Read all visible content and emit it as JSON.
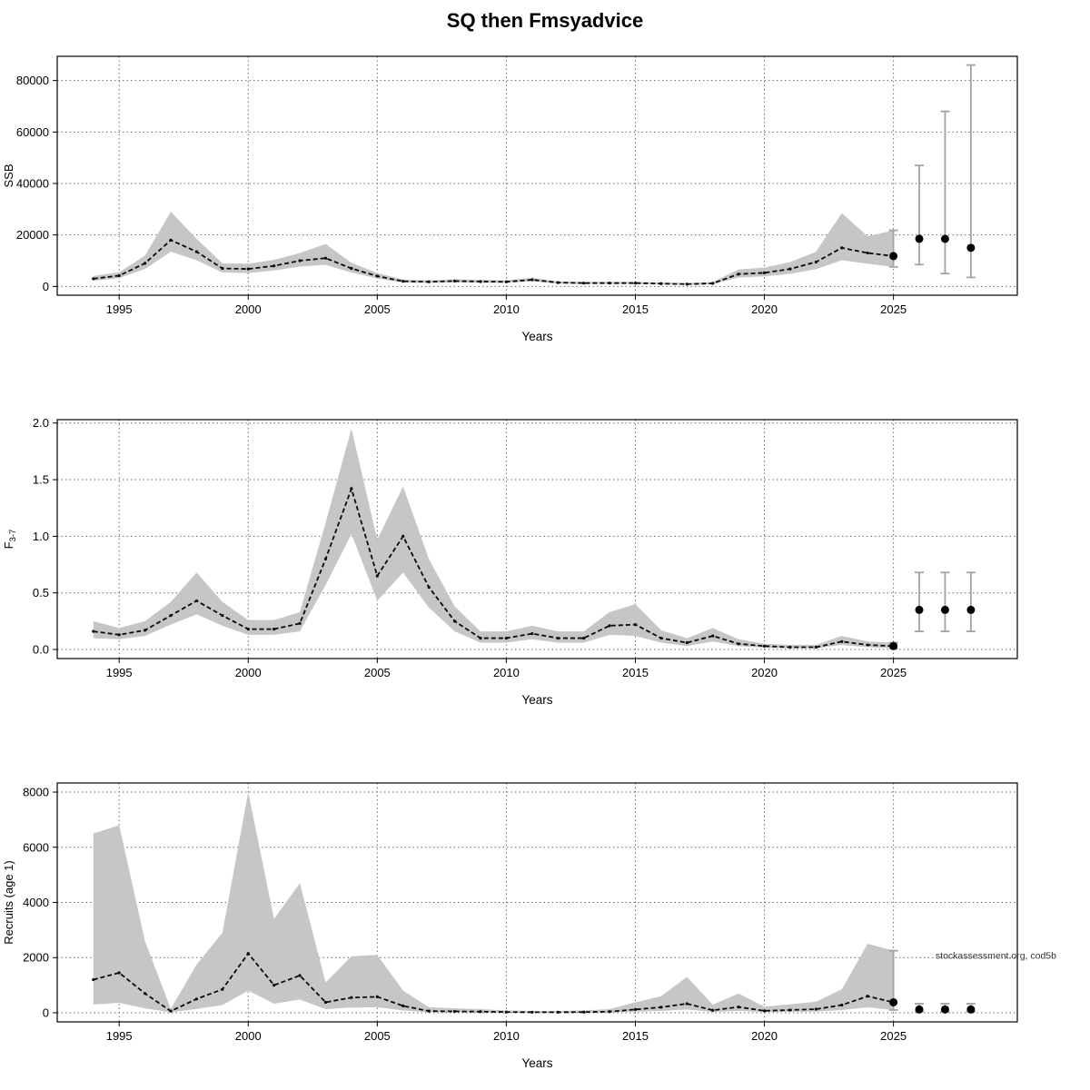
{
  "title": "SQ then Fmsyadvice",
  "annotation": "stockassessment.org, cod5b",
  "colors": {
    "band": "#c6c6c6",
    "line": "#0a0a0a",
    "grid": "#6b6b6b",
    "forecast_bar": "#a3a3a3",
    "dot": "#000000",
    "axis": "#000000",
    "annotation_text": "#333333"
  },
  "chart_data": [
    {
      "type": "line",
      "name": "ssb",
      "title": "",
      "xlabel": "Years",
      "ylabel": "SSB",
      "ylabel_sub": "",
      "legend": "none",
      "grid": true,
      "xlim": [
        1992.6,
        2029.8
      ],
      "ylim": [
        -3400,
        89400
      ],
      "x_ticks": [
        1995,
        2000,
        2005,
        2010,
        2015,
        2020,
        2025
      ],
      "x_tick_labels": [
        "1995",
        "2000",
        "2005",
        "2010",
        "2015",
        "2020",
        "2025"
      ],
      "y_ticks": [
        0,
        20000,
        40000,
        60000,
        80000
      ],
      "y_tick_labels": [
        "0",
        "20000",
        "40000",
        "60000",
        "80000"
      ],
      "years": [
        1994,
        1995,
        1996,
        1997,
        1998,
        1999,
        2000,
        2001,
        2002,
        2003,
        2004,
        2005,
        2006,
        2007,
        2008,
        2009,
        2010,
        2011,
        2012,
        2013,
        2014,
        2015,
        2016,
        2017,
        2018,
        2019,
        2020,
        2021,
        2022,
        2023,
        2024,
        2025
      ],
      "est": [
        3000,
        4200,
        9000,
        18000,
        13500,
        7000,
        6800,
        8000,
        10000,
        11000,
        7000,
        4000,
        2000,
        1800,
        2100,
        1900,
        1800,
        2600,
        1500,
        1300,
        1300,
        1300,
        1100,
        900,
        1200,
        4800,
        5300,
        6800,
        9500,
        15000,
        13000,
        11800
      ],
      "lo": [
        2200,
        3200,
        6800,
        13500,
        10200,
        5400,
        5200,
        6200,
        7700,
        8400,
        5400,
        3100,
        1500,
        1400,
        1600,
        1400,
        1400,
        2000,
        1100,
        1000,
        1000,
        1000,
        800,
        650,
        850,
        3500,
        3900,
        4900,
        6700,
        10200,
        8800,
        7600
      ],
      "hi": [
        4100,
        5500,
        12000,
        29000,
        18500,
        9000,
        8800,
        10300,
        13000,
        16500,
        9200,
        5200,
        2700,
        2400,
        2800,
        2600,
        2400,
        3400,
        2000,
        1800,
        1800,
        1800,
        1500,
        1300,
        1700,
        6600,
        7300,
        9500,
        13500,
        28500,
        19500,
        21800
      ],
      "forecast": {
        "years": [
          2026,
          2027,
          2028
        ],
        "est": [
          18500,
          18500,
          15000
        ],
        "lo": [
          8500,
          5000,
          3500
        ],
        "hi": [
          47000,
          68000,
          86000
        ]
      }
    },
    {
      "type": "line",
      "name": "fbar",
      "title": "",
      "xlabel": "Years",
      "ylabel": "F",
      "ylabel_sub": "3-7",
      "legend": "none",
      "grid": true,
      "xlim": [
        1992.6,
        2029.8
      ],
      "ylim": [
        -0.08,
        2.03
      ],
      "x_ticks": [
        1995,
        2000,
        2005,
        2010,
        2015,
        2020,
        2025
      ],
      "x_tick_labels": [
        "1995",
        "2000",
        "2005",
        "2010",
        "2015",
        "2020",
        "2025"
      ],
      "y_ticks": [
        0,
        0.5,
        1.0,
        1.5,
        2.0
      ],
      "y_tick_labels": [
        "0.0",
        "0.5",
        "1.0",
        "1.5",
        "2.0"
      ],
      "years": [
        1994,
        1995,
        1996,
        1997,
        1998,
        1999,
        2000,
        2001,
        2002,
        2003,
        2004,
        2005,
        2006,
        2007,
        2008,
        2009,
        2010,
        2011,
        2012,
        2013,
        2014,
        2015,
        2016,
        2017,
        2018,
        2019,
        2020,
        2021,
        2022,
        2023,
        2024,
        2025
      ],
      "est": [
        0.16,
        0.13,
        0.17,
        0.3,
        0.43,
        0.3,
        0.18,
        0.18,
        0.23,
        0.8,
        1.42,
        0.65,
        1.0,
        0.55,
        0.25,
        0.1,
        0.1,
        0.14,
        0.1,
        0.1,
        0.21,
        0.22,
        0.1,
        0.06,
        0.12,
        0.05,
        0.03,
        0.02,
        0.02,
        0.07,
        0.04,
        0.03
      ],
      "lo": [
        0.1,
        0.09,
        0.12,
        0.22,
        0.31,
        0.21,
        0.13,
        0.13,
        0.16,
        0.57,
        1.02,
        0.43,
        0.68,
        0.37,
        0.16,
        0.06,
        0.06,
        0.09,
        0.06,
        0.06,
        0.13,
        0.12,
        0.06,
        0.03,
        0.07,
        0.03,
        0.015,
        0.01,
        0.01,
        0.04,
        0.02,
        0.01
      ],
      "hi": [
        0.25,
        0.19,
        0.25,
        0.42,
        0.68,
        0.42,
        0.26,
        0.26,
        0.33,
        1.12,
        1.95,
        0.97,
        1.44,
        0.8,
        0.38,
        0.16,
        0.16,
        0.21,
        0.16,
        0.16,
        0.33,
        0.4,
        0.17,
        0.1,
        0.19,
        0.09,
        0.05,
        0.04,
        0.04,
        0.12,
        0.07,
        0.06
      ],
      "forecast": {
        "years": [
          2026,
          2027,
          2028
        ],
        "est": [
          0.35,
          0.35,
          0.35
        ],
        "lo": [
          0.16,
          0.16,
          0.16
        ],
        "hi": [
          0.68,
          0.68,
          0.68
        ]
      }
    },
    {
      "type": "line",
      "name": "recruits",
      "title": "",
      "xlabel": "Years",
      "ylabel": "Recruits (age 1)",
      "ylabel_sub": "",
      "legend": "none",
      "grid": true,
      "xlim": [
        1992.6,
        2029.8
      ],
      "ylim": [
        -330,
        8330
      ],
      "x_ticks": [
        1995,
        2000,
        2005,
        2010,
        2015,
        2020,
        2025
      ],
      "x_tick_labels": [
        "1995",
        "2000",
        "2005",
        "2010",
        "2015",
        "2020",
        "2025"
      ],
      "y_ticks": [
        0,
        2000,
        4000,
        6000,
        8000
      ],
      "y_tick_labels": [
        "0",
        "2000",
        "4000",
        "6000",
        "8000"
      ],
      "years": [
        1994,
        1995,
        1996,
        1997,
        1998,
        1999,
        2000,
        2001,
        2002,
        2003,
        2004,
        2005,
        2006,
        2007,
        2008,
        2009,
        2010,
        2011,
        2012,
        2013,
        2014,
        2015,
        2016,
        2017,
        2018,
        2019,
        2020,
        2021,
        2022,
        2023,
        2024,
        2025
      ],
      "est": [
        1200,
        1450,
        700,
        60,
        500,
        850,
        2150,
        1000,
        1350,
        380,
        550,
        580,
        250,
        60,
        50,
        40,
        25,
        20,
        20,
        25,
        40,
        120,
        200,
        330,
        90,
        210,
        70,
        100,
        130,
        280,
        600,
        380
      ],
      "lo": [
        300,
        360,
        160,
        15,
        140,
        280,
        800,
        330,
        480,
        130,
        190,
        200,
        80,
        20,
        15,
        12,
        8,
        6,
        6,
        8,
        12,
        40,
        70,
        120,
        30,
        70,
        25,
        35,
        45,
        100,
        200,
        100
      ],
      "hi": [
        6500,
        6800,
        2600,
        140,
        1750,
        2900,
        8000,
        3400,
        4700,
        1100,
        2050,
        2100,
        800,
        200,
        160,
        130,
        85,
        65,
        65,
        85,
        130,
        380,
        600,
        1300,
        290,
        700,
        220,
        310,
        400,
        850,
        2500,
        2250
      ],
      "forecast": {
        "years": [
          2026,
          2027,
          2028
        ],
        "est": [
          120,
          120,
          120
        ],
        "lo": [
          40,
          40,
          40
        ],
        "hi": [
          330,
          330,
          330
        ]
      },
      "annotation": {
        "value": 2050
      }
    }
  ]
}
